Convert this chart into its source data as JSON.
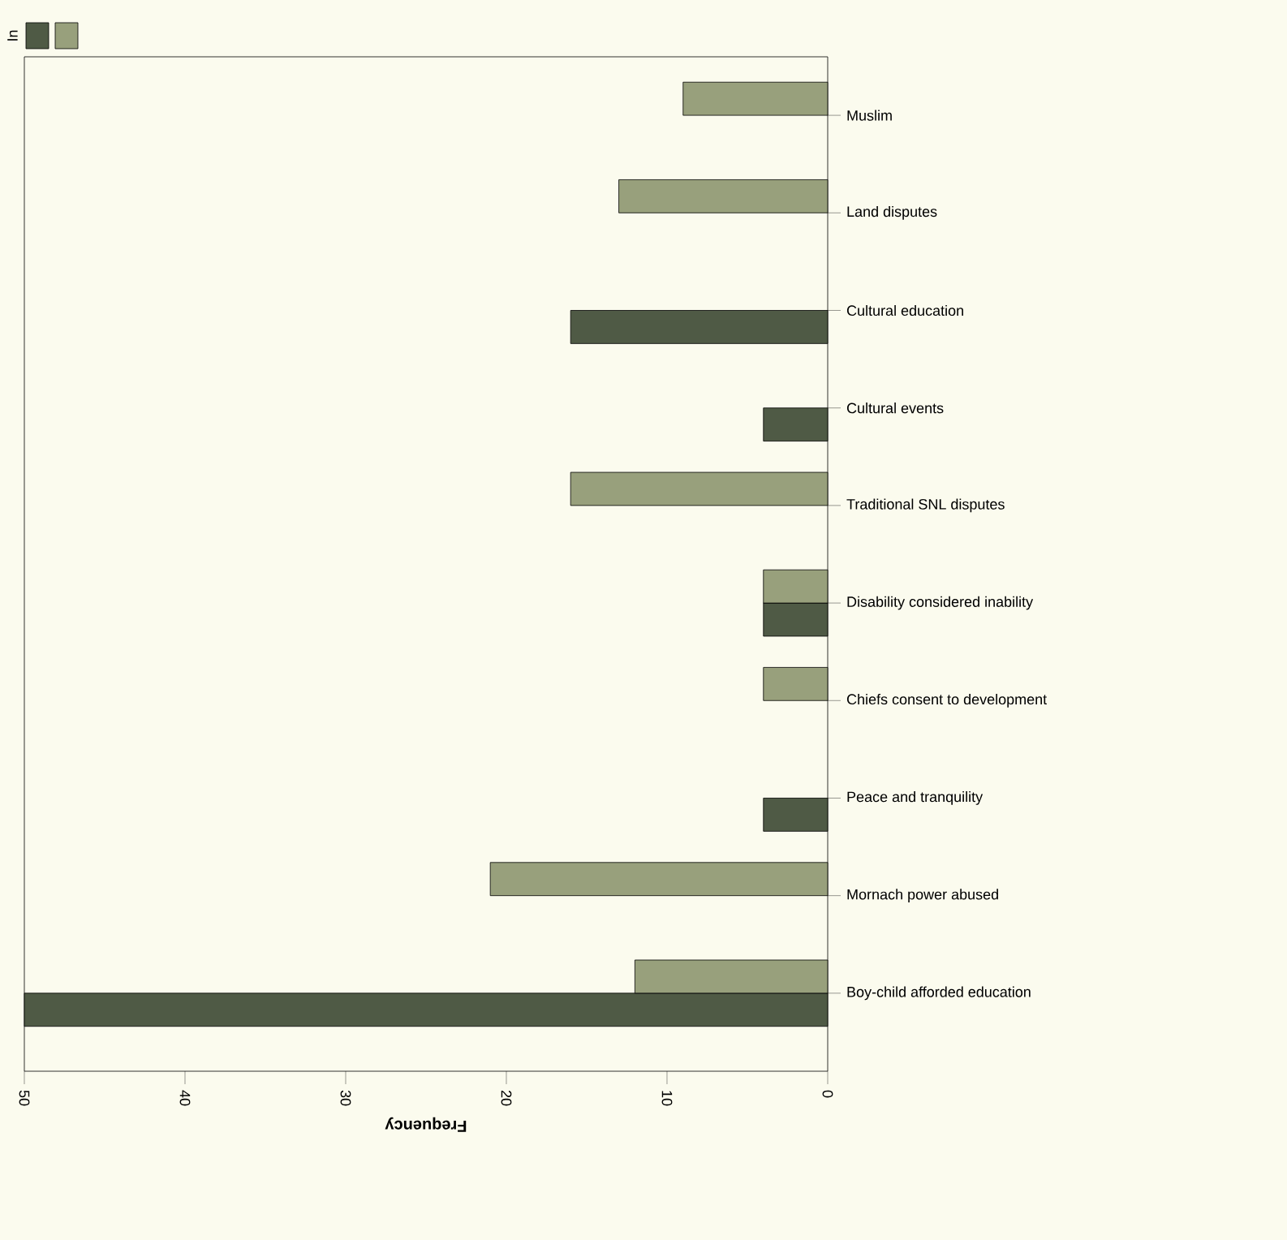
{
  "chart_data": {
    "type": "bar",
    "orientation": "horizontal",
    "xlabel": "Frequency",
    "legend_title": "In",
    "categories": [
      "Muslim",
      "Land disputes",
      "Cultural education",
      "Cultural events",
      "Traditional SNL disputes",
      "Disability considered inability",
      "Chiefs consent to development",
      "Peace and tranquility",
      "Mornach power abused",
      "Boy-child afforded education"
    ],
    "series": [
      {
        "color": "#4f5a45",
        "values": [
          null,
          null,
          16,
          4,
          null,
          4,
          null,
          4,
          null,
          50
        ]
      },
      {
        "color": "#98a07c",
        "values": [
          9,
          13,
          null,
          null,
          16,
          4,
          4,
          null,
          21,
          12
        ]
      }
    ],
    "xlim": [
      50,
      0
    ],
    "xticks": [
      50,
      40,
      30,
      20,
      10,
      0
    ]
  }
}
